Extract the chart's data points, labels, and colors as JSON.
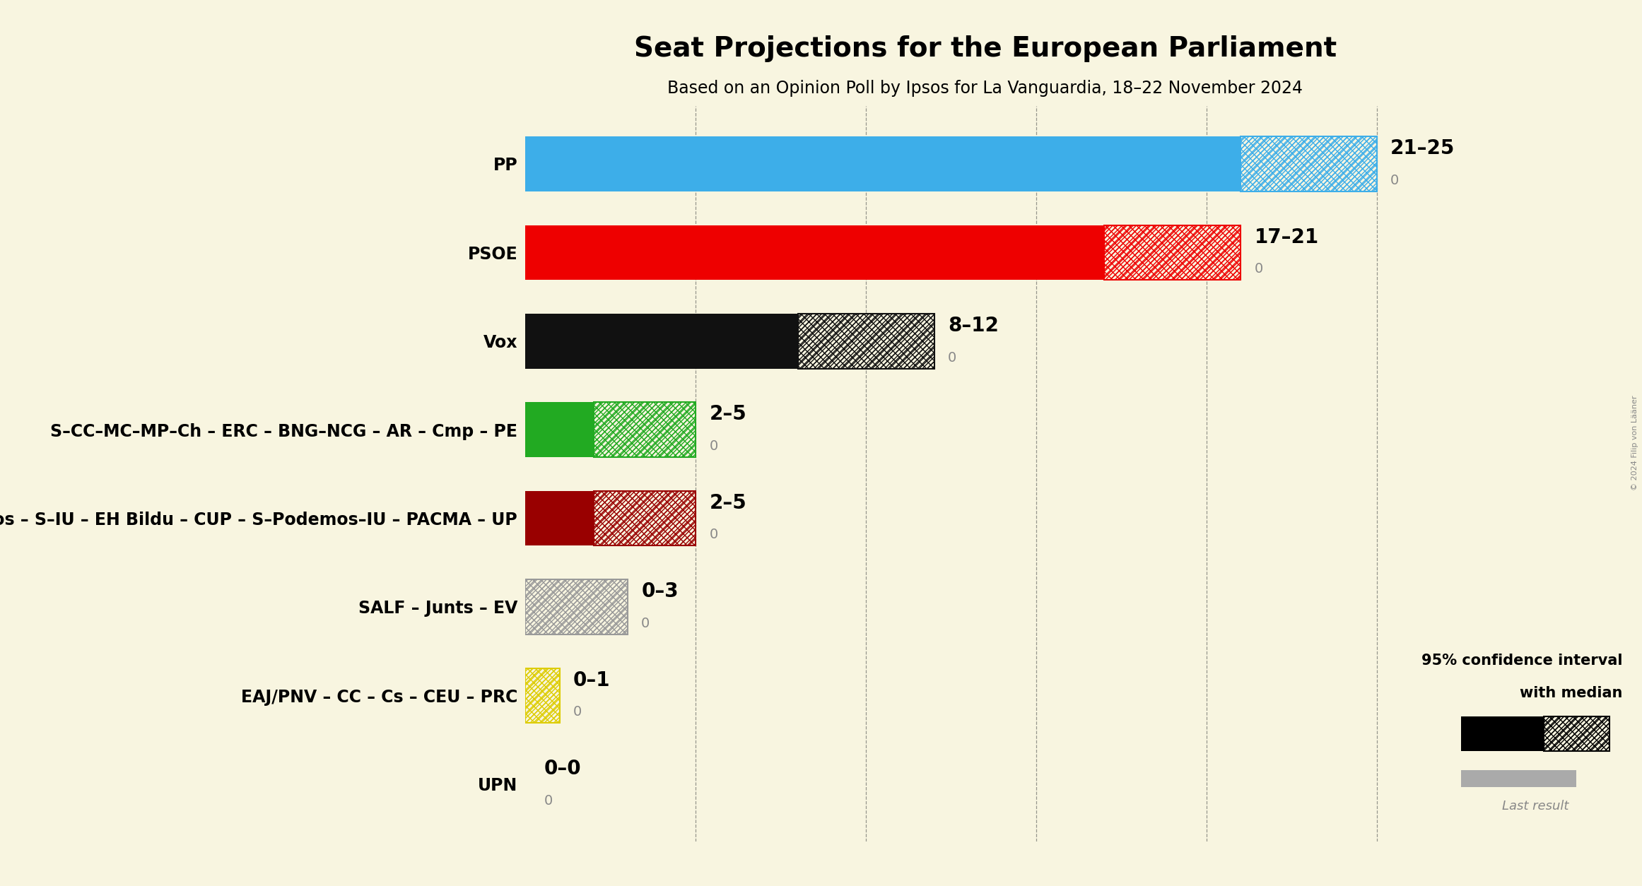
{
  "title": "Seat Projections for the European Parliament",
  "subtitle": "Based on an Opinion Poll by Ipsos for La Vanguardia, 18–22 November 2024",
  "background_color": "#f8f5e0",
  "parties": [
    "PP",
    "PSOE",
    "Vox",
    "S–CC–MC–MP–Ch – ERC – BNG–NCG – AR – Cmp – PE",
    "Podemos – S–IU – EH Bildu – CUP – S–Podemos–IU – PACMA – UP",
    "SALF – Junts – EV",
    "EAJ/PNV – CC – Cs – CEU – PRC",
    "UPN"
  ],
  "median_seats": [
    21,
    17,
    8,
    2,
    2,
    0,
    0,
    0
  ],
  "high_seats": [
    25,
    21,
    12,
    5,
    5,
    3,
    1,
    0
  ],
  "colors": [
    "#3daee9",
    "#ee0000",
    "#111111",
    "#22aa22",
    "#990000",
    "#999999",
    "#ddcc00",
    "#555555"
  ],
  "labels": [
    "21–25",
    "17–21",
    "8–12",
    "2–5",
    "2–5",
    "0–3",
    "0–1",
    "0–0"
  ],
  "last_result_label": "0",
  "xlim_max": 27,
  "figsize": [
    23.23,
    12.54
  ],
  "dpi": 100,
  "legend_text1": "95% confidence interval",
  "legend_text2": "with median",
  "legend_text3": "Last result",
  "copyright": "© 2024 Filip von Lääner",
  "vlines": [
    5,
    10,
    15,
    20,
    25
  ],
  "bar_height": 0.62,
  "title_fontsize": 28,
  "subtitle_fontsize": 17,
  "label_fontsize": 16,
  "tick_fontsize": 17,
  "annotation_fontsize": 20,
  "last_result_fontsize": 14
}
